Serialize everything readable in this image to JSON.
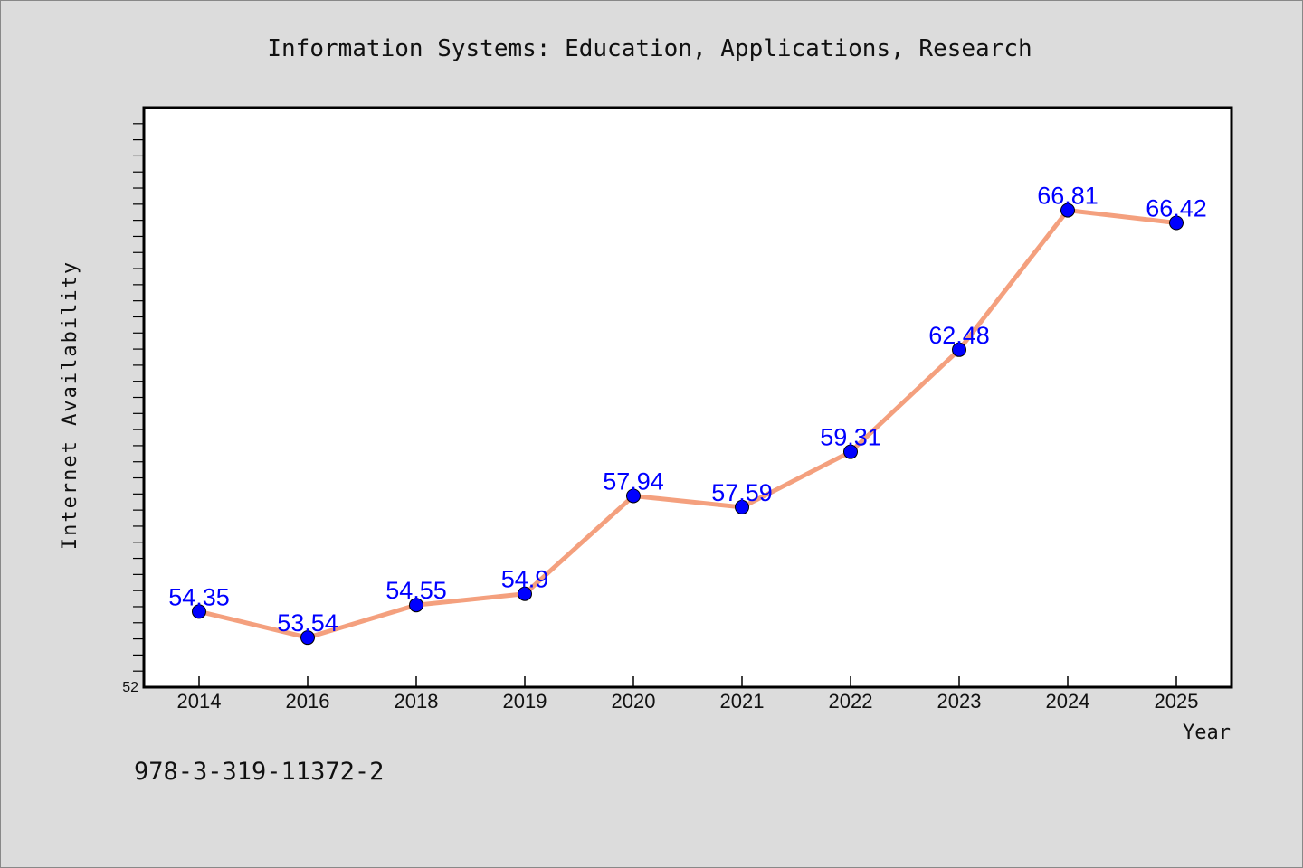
{
  "chart_data": {
    "type": "line",
    "title": "Information Systems: Education, Applications, Research",
    "xlabel": "Year",
    "ylabel": "Internet Availability",
    "categories": [
      "2014",
      "2016",
      "2018",
      "2019",
      "2020",
      "2021",
      "2022",
      "2023",
      "2024",
      "2025"
    ],
    "series": [
      {
        "values": [
          54.35,
          53.54,
          54.55,
          54.9,
          57.94,
          57.59,
          59.31,
          62.48,
          66.81,
          66.42
        ],
        "labels": [
          "54.35",
          "53.54",
          "54.55",
          "54.9",
          "57.94",
          "57.59",
          "59.31",
          "62.48",
          "66.81",
          "66.42"
        ]
      }
    ],
    "ylim": [
      52,
      70
    ],
    "yticks_labeled": [
      "52"
    ],
    "grid": false,
    "line_color": "#f4a07e",
    "marker_color": "#0000ff",
    "label_color": "#0000ff"
  },
  "footer": {
    "text": "978-3-319-11372-2"
  },
  "colors": {
    "background": "#dcdcdc",
    "plot_background": "#ffffff",
    "axes": "#000000"
  }
}
